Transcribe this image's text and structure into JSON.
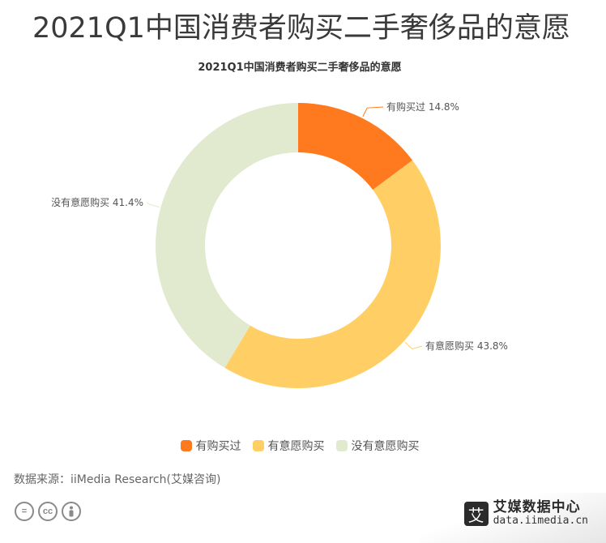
{
  "page": {
    "title": "2021Q1中国消费者购买二手奢侈品的意愿"
  },
  "chart_data": {
    "type": "pie",
    "variant": "donut",
    "title": "2021Q1中国消费者购买二手奢侈品的意愿",
    "slices": [
      {
        "label": "有购买过",
        "value": 14.8,
        "value_label": "14.8%",
        "color": "#ff7a1f"
      },
      {
        "label": "有意愿购买",
        "value": 43.8,
        "value_label": "43.8%",
        "color": "#ffcf66"
      },
      {
        "label": "没有意愿购买",
        "value": 41.4,
        "value_label": "41.4%",
        "color": "#e1eacf"
      }
    ],
    "legend_position": "bottom-center"
  },
  "legend": {
    "items": [
      "有购买过",
      "有意愿购买",
      "没有意愿购买"
    ]
  },
  "footer": {
    "source": "数据来源：iiMedia Research(艾媒咨询)",
    "license_icons": [
      "equals-icon",
      "cc-icon",
      "person-icon"
    ],
    "brand_logo_char": "艾",
    "brand_name": "艾媒数据中心",
    "brand_url": "data.iimedia.cn"
  }
}
